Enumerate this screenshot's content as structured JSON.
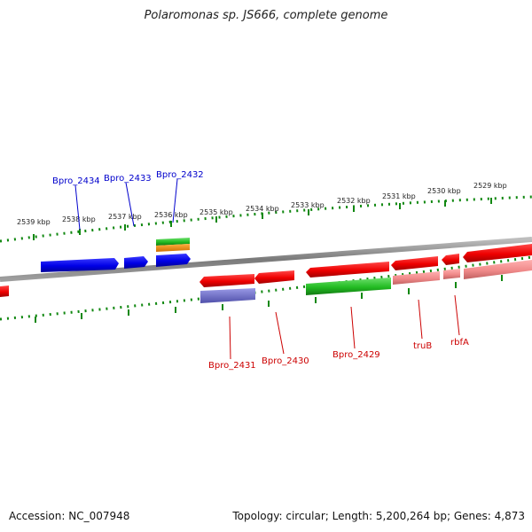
{
  "title": "Polaromonas sp. JS666, complete genome",
  "accession": "Accession: NC_007948",
  "topology": "Topology: circular; Length: 5,200,264 bp; Genes: 4,873",
  "colors": {
    "forward_gene": "#0000ee",
    "reverse_gene": "#ee0000",
    "reverse_gene_light": "#f08a8a",
    "green_feature": "#22bb22",
    "orange_feature": "#ee8800",
    "purple_feature": "#6666cc",
    "backbone": "#888888",
    "ticks": "#118811",
    "forward_label": "#0000cc",
    "reverse_label": "#cc0000"
  },
  "scale_labels": [
    "2539 kbp",
    "2538 kbp",
    "2537 kbp",
    "2536 kbp",
    "2535 kbp",
    "2534 kbp",
    "2533 kbp",
    "2532 kbp",
    "2531 kbp",
    "2530 kbp",
    "2529 kbp"
  ],
  "forward_genes": [
    "Bpro_2434",
    "Bpro_2433",
    "Bpro_2432"
  ],
  "reverse_genes": [
    "Bpro_2431",
    "Bpro_2430",
    "Bpro_2429",
    "truB",
    "rbfA"
  ]
}
